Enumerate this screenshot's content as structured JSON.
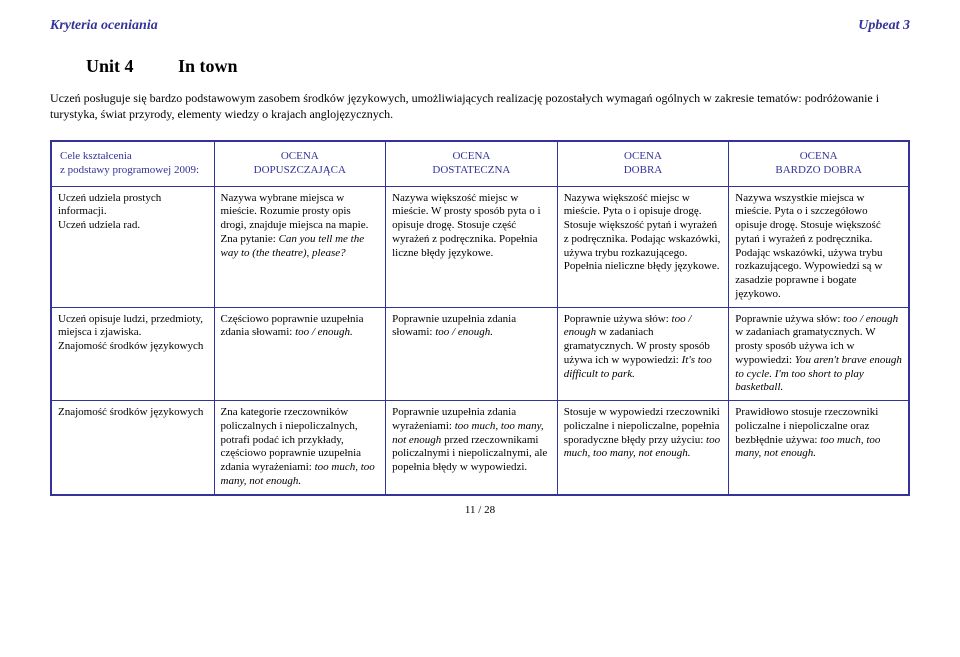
{
  "header": {
    "left": "Kryteria oceniania",
    "right": "Upbeat 3"
  },
  "unit": {
    "number": "Unit 4",
    "name": "In town"
  },
  "intro": "Uczeń posługuje się bardzo podstawowym zasobem środków językowych, umożliwiających realizację pozostałych wymagań ogólnych w zakresie tematów: podróżowanie i turystyka, świat przyrody, elementy wiedzy o krajach anglojęzycznych.",
  "table": {
    "head": {
      "c1a": "Cele kształcenia",
      "c1b": "z podstawy programowej 2009:",
      "c2a": "OCENA",
      "c2b": "DOPUSZCZAJĄCA",
      "c3a": "OCENA",
      "c3b": "DOSTATECZNA",
      "c4a": "OCENA",
      "c4b": "DOBRA",
      "c5a": "OCENA",
      "c5b": "BARDZO DOBRA"
    },
    "rows": [
      {
        "c1": "Uczeń udziela prostych informacji.\nUczeń udziela rad.",
        "c2_pre": "Nazywa wybrane miejsca w mieście. Rozumie prosty opis drogi, znajduje miejsca na mapie. Zna pytanie: ",
        "c2_it": "Can you tell me the way to (the theatre), please?",
        "c3": "Nazywa większość miejsc w mieście. W prosty sposób pyta o i opisuje drogę. Stosuje część wyrażeń z podręcznika. Popełnia liczne błędy językowe.",
        "c4": "Nazywa większość miejsc w mieście. Pyta o i opisuje drogę. Stosuje większość pytań i wyrażeń z podręcznika. Podając wskazówki, używa trybu rozkazującego. Popełnia nieliczne błędy językowe.",
        "c5": "Nazywa wszystkie miejsca w mieście. Pyta o i szczegółowo opisuje drogę. Stosuje większość pytań i wyrażeń z podręcznika. Podając wskazówki, używa trybu rozkazującego. Wypowiedzi są w zasadzie poprawne i bogate językowo."
      },
      {
        "c1": "Uczeń opisuje ludzi, przedmioty, miejsca i zjawiska.\nZnajomość środków językowych",
        "c2_pre": "Częściowo poprawnie uzupełnia zdania słowami: ",
        "c2_it": "too / enough.",
        "c3_pre": "Poprawnie uzupełnia zdania słowami: ",
        "c3_it": "too / enough.",
        "c4_pre": "Poprawnie używa słów: ",
        "c4_it1": "too / enough",
        "c4_mid": " w zadaniach gramatycznych. W prosty sposób używa ich w wypowiedzi: ",
        "c4_it2": "It's too difficult to park.",
        "c5_pre": "Poprawnie używa słów: ",
        "c5_it1": "too / enough",
        "c5_mid": " w zadaniach gramatycznych. W prosty sposób używa ich w wypowiedzi: ",
        "c5_it2": "You aren't brave enough to cycle. I'm too short to play basketball."
      },
      {
        "c1": "Znajomość środków językowych",
        "c2_pre": "Zna kategorie rzeczowników policzalnych i niepoliczalnych, potrafi podać ich przykłady, częściowo poprawnie uzupełnia zdania wyrażeniami: ",
        "c2_it": "too much, too many, not enough.",
        "c3_pre": "Poprawnie uzupełnia zdania wyrażeniami: ",
        "c3_it": "too much, too many, not enough",
        "c3_post": " przed rzeczownikami policzalnymi i niepoliczalnymi, ale popełnia błędy w wypowiedzi.",
        "c4_pre": "Stosuje w wypowiedzi rzeczowniki policzalne i niepoliczalne, popełnia sporadyczne błędy przy użyciu: ",
        "c4_it1": "too much, too many, not enough.",
        "c5_pre": "Prawidłowo stosuje rzeczowniki policzalne i niepoliczalne oraz bezbłędnie używa: ",
        "c5_it1": "too much, too many, not enough."
      }
    ]
  },
  "pager": "11 / 28"
}
